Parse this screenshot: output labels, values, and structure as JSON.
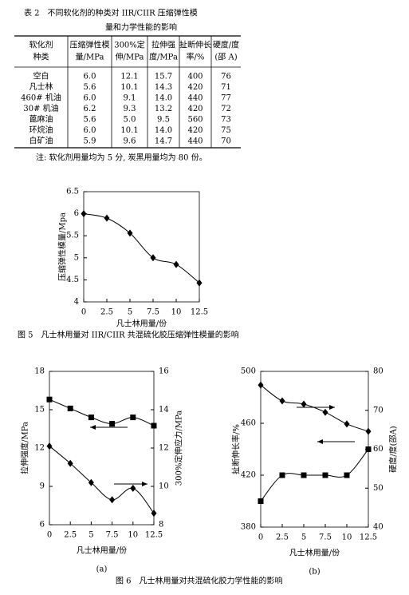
{
  "table": {
    "title": [
      "表 2　不同软化剂的种类对 IIR/CIIR 压缩弹性模",
      "量和力学性能的影响"
    ],
    "header": [
      [
        "软化剂",
        "种类"
      ],
      [
        "压缩弹性模",
        "量/MPa"
      ],
      [
        "300%定",
        "伸/MPa"
      ],
      [
        "拉伸强",
        "度/MPa"
      ],
      [
        "扯断伸长",
        "率/%"
      ],
      [
        "硬度/度",
        "(邵 A)"
      ]
    ],
    "rows": [
      [
        "空白",
        "6.0",
        "12.1",
        "15.7",
        "400",
        "76"
      ],
      [
        "凡士林",
        "5.6",
        "10.1",
        "14.3",
        "420",
        "71"
      ],
      [
        "460# 机油",
        "6.0",
        "9.1",
        "14.0",
        "440",
        "77"
      ],
      [
        "30# 机油",
        "6.2",
        "9.3",
        "13.2",
        "420",
        "72"
      ],
      [
        "蓖麻油",
        "5.6",
        "5.0",
        "9.5",
        "560",
        "73"
      ],
      [
        "环烷油",
        "6.0",
        "10.1",
        "14.0",
        "420",
        "75"
      ],
      [
        "白矿油",
        "5.9",
        "9.6",
        "14.7",
        "440",
        "70"
      ]
    ],
    "note": "注: 软化剂用量均为 5 分, 炭黑用量均为 80 份。"
  },
  "figures": [
    {
      "caption": "图 5　凡士林用量对 IIR/CIIR 共混硫化胶压缩弹性模量的影响",
      "charts": [
        {
          "type": "line",
          "x": [
            0,
            2.5,
            5,
            7.5,
            10,
            12.5
          ],
          "xlim": [
            0,
            12.5
          ],
          "xticks": [
            0,
            2.5,
            5,
            7.5,
            10,
            12.5
          ],
          "ylim": [
            4,
            6.5
          ],
          "yticks": [
            4,
            4.5,
            5,
            5.5,
            6,
            6.5
          ],
          "xlabel": "凡士林用量/份",
          "ylabel": "压缩弹性模量/Mpa",
          "series": [
            {
              "marker": "diamond",
              "color": "#000000",
              "values": [
                6.0,
                5.9,
                5.56,
                5.0,
                4.85,
                4.43
              ]
            }
          ]
        }
      ]
    },
    {
      "caption": "图 6　凡士林用量对共混硫化胶力学性能的影响",
      "charts": [
        {
          "type": "line",
          "label": "(a)",
          "x": [
            0,
            2.5,
            5,
            7.5,
            10,
            12.5
          ],
          "xlim": [
            0,
            12.5
          ],
          "xticks": [
            0,
            2.5,
            5,
            7.5,
            10,
            12.5
          ],
          "ylim": [
            6,
            18
          ],
          "yticks": [
            6,
            9,
            12,
            15,
            18
          ],
          "y2lim": [
            8,
            16
          ],
          "y2ticks": [
            8,
            10,
            12,
            14,
            16
          ],
          "xlabel": "凡士林用量/份",
          "ylabel": "拉伸强度/MPa",
          "y2label": "300%定伸应力/MPa",
          "series": [
            {
              "marker": "square",
              "color": "#000000",
              "values": [
                15.8,
                15.1,
                14.4,
                13.9,
                14.4,
                13.75
              ]
            },
            {
              "marker": "diamond",
              "color": "#000000",
              "axis": "y2",
              "values": [
                12.1,
                11.2,
                10.2,
                9.3,
                9.9,
                8.6
              ]
            }
          ]
        },
        {
          "type": "line",
          "label": "(b)",
          "x": [
            0,
            2.5,
            5,
            7.5,
            10,
            12.5
          ],
          "xlim": [
            0,
            12.5
          ],
          "xticks": [
            0,
            2.5,
            5,
            7.5,
            10,
            12.5
          ],
          "ylim": [
            380,
            500
          ],
          "yticks": [
            380,
            420,
            460,
            500
          ],
          "y2lim": [
            40,
            80
          ],
          "y2ticks": [
            40,
            50,
            60,
            70,
            80
          ],
          "xlabel": "凡士林用量/份",
          "ylabel": "扯断伸长率/%",
          "y2label": "硬度/度(邵A)",
          "series": [
            {
              "marker": "square",
              "color": "#000000",
              "values": [
                400,
                420,
                420,
                420,
                420,
                440
              ]
            },
            {
              "marker": "diamond",
              "color": "#000000",
              "axis": "y2",
              "values": [
                76.5,
                72.4,
                71.6,
                69.5,
                66.5,
                64.6
              ]
            }
          ]
        }
      ]
    }
  ]
}
